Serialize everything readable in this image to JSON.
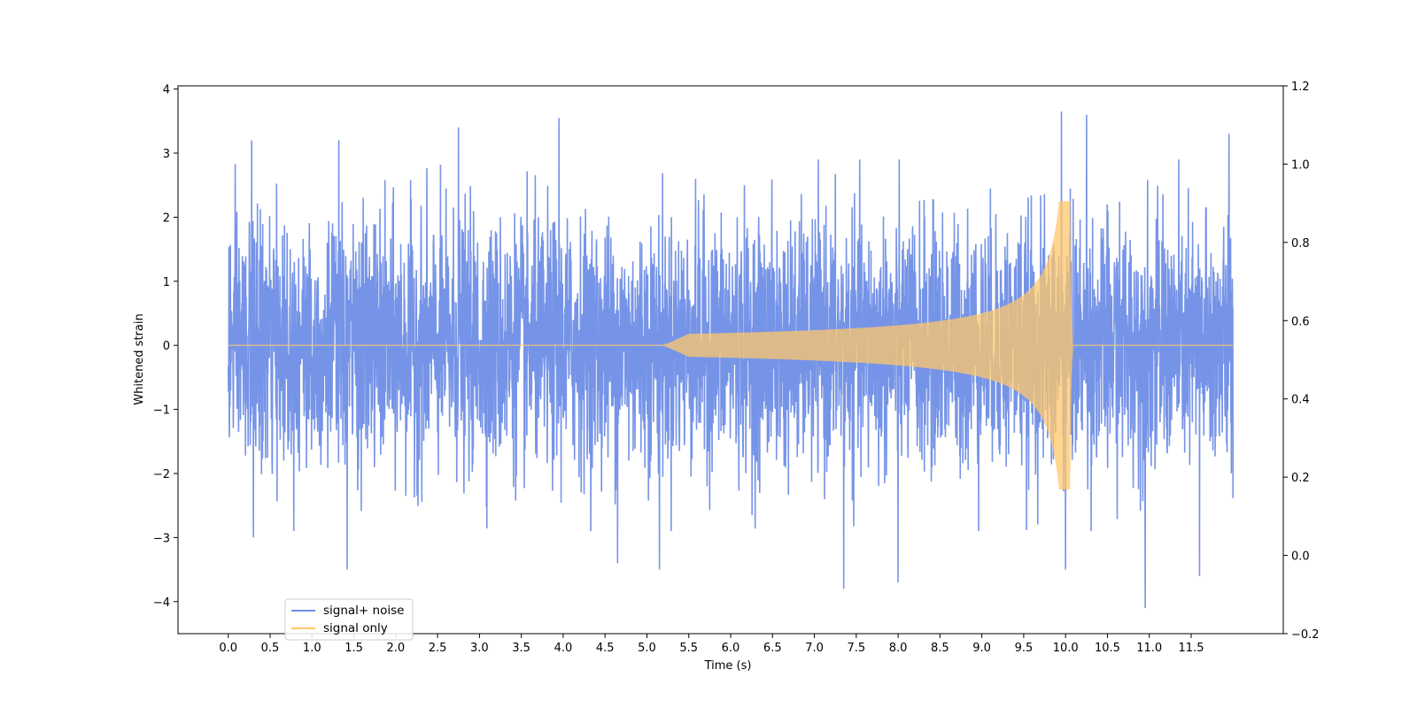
{
  "chart_data": {
    "type": "line",
    "title": "",
    "xlabel": "Time (s)",
    "ylabel": "Whitened strain",
    "xlim": [
      -0.6,
      12.6
    ],
    "ylim": [
      -4.5,
      4.05
    ],
    "y2lim": [
      -0.2,
      1.2
    ],
    "grid": false,
    "legend_placement": "lower-left",
    "x_tick_labels": [
      "0.0",
      "0.5",
      "1.0",
      "1.5",
      "2.0",
      "2.5",
      "3.0",
      "3.5",
      "4.0",
      "4.5",
      "5.0",
      "5.5",
      "6.0",
      "6.5",
      "7.0",
      "7.5",
      "8.0",
      "8.5",
      "9.0",
      "9.5",
      "10.0",
      "10.5",
      "11.0",
      "11.5"
    ],
    "y_tick_labels": [
      "−4",
      "−3",
      "−2",
      "−1",
      "0",
      "1",
      "2",
      "3",
      "4"
    ],
    "y2_tick_labels": [
      "−0.2",
      "0.0",
      "0.2",
      "0.4",
      "0.6",
      "0.8",
      "1.0",
      "1.2"
    ],
    "series": [
      {
        "name": "signal+ noise",
        "color": "#6f8ee6",
        "description_of_data": "whitened noise, amplitude roughly ±1.5 typical with spikes up to ±3.7, from t=0.0 to t=12.0 s",
        "peaks": [
          {
            "x": 0.28,
            "y": 3.2
          },
          {
            "x": 0.3,
            "y": -3.0
          },
          {
            "x": 1.32,
            "y": 3.2
          },
          {
            "x": 1.42,
            "y": -3.5
          },
          {
            "x": 2.75,
            "y": 3.4
          },
          {
            "x": 3.95,
            "y": 3.55
          },
          {
            "x": 4.65,
            "y": -3.4
          },
          {
            "x": 5.15,
            "y": -3.5
          },
          {
            "x": 7.35,
            "y": -3.8
          },
          {
            "x": 8.0,
            "y": -3.7
          },
          {
            "x": 9.95,
            "y": 3.65
          },
          {
            "x": 10.0,
            "y": -3.5
          },
          {
            "x": 10.25,
            "y": 3.6
          },
          {
            "x": 10.95,
            "y": -4.1
          },
          {
            "x": 11.6,
            "y": -3.6
          },
          {
            "x": 11.95,
            "y": 3.3
          }
        ]
      },
      {
        "name": "signal only",
        "color": "#ffc76b",
        "chirp_start": 5.5,
        "merger_time": 10.05,
        "peak_amplitude": 2.25,
        "end_time": 12.0
      }
    ]
  }
}
